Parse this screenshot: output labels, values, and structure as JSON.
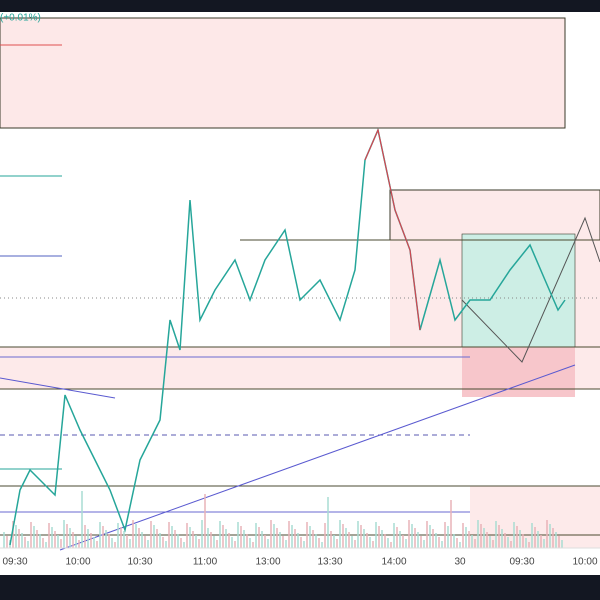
{
  "header": {
    "change": "(+0.01%)"
  },
  "x_axis": {
    "labels": [
      "09:30",
      "10:00",
      "10:30",
      "11:00",
      "13:00",
      "13:30",
      "14:00",
      "30",
      "09:30",
      "10:00"
    ]
  }
}
